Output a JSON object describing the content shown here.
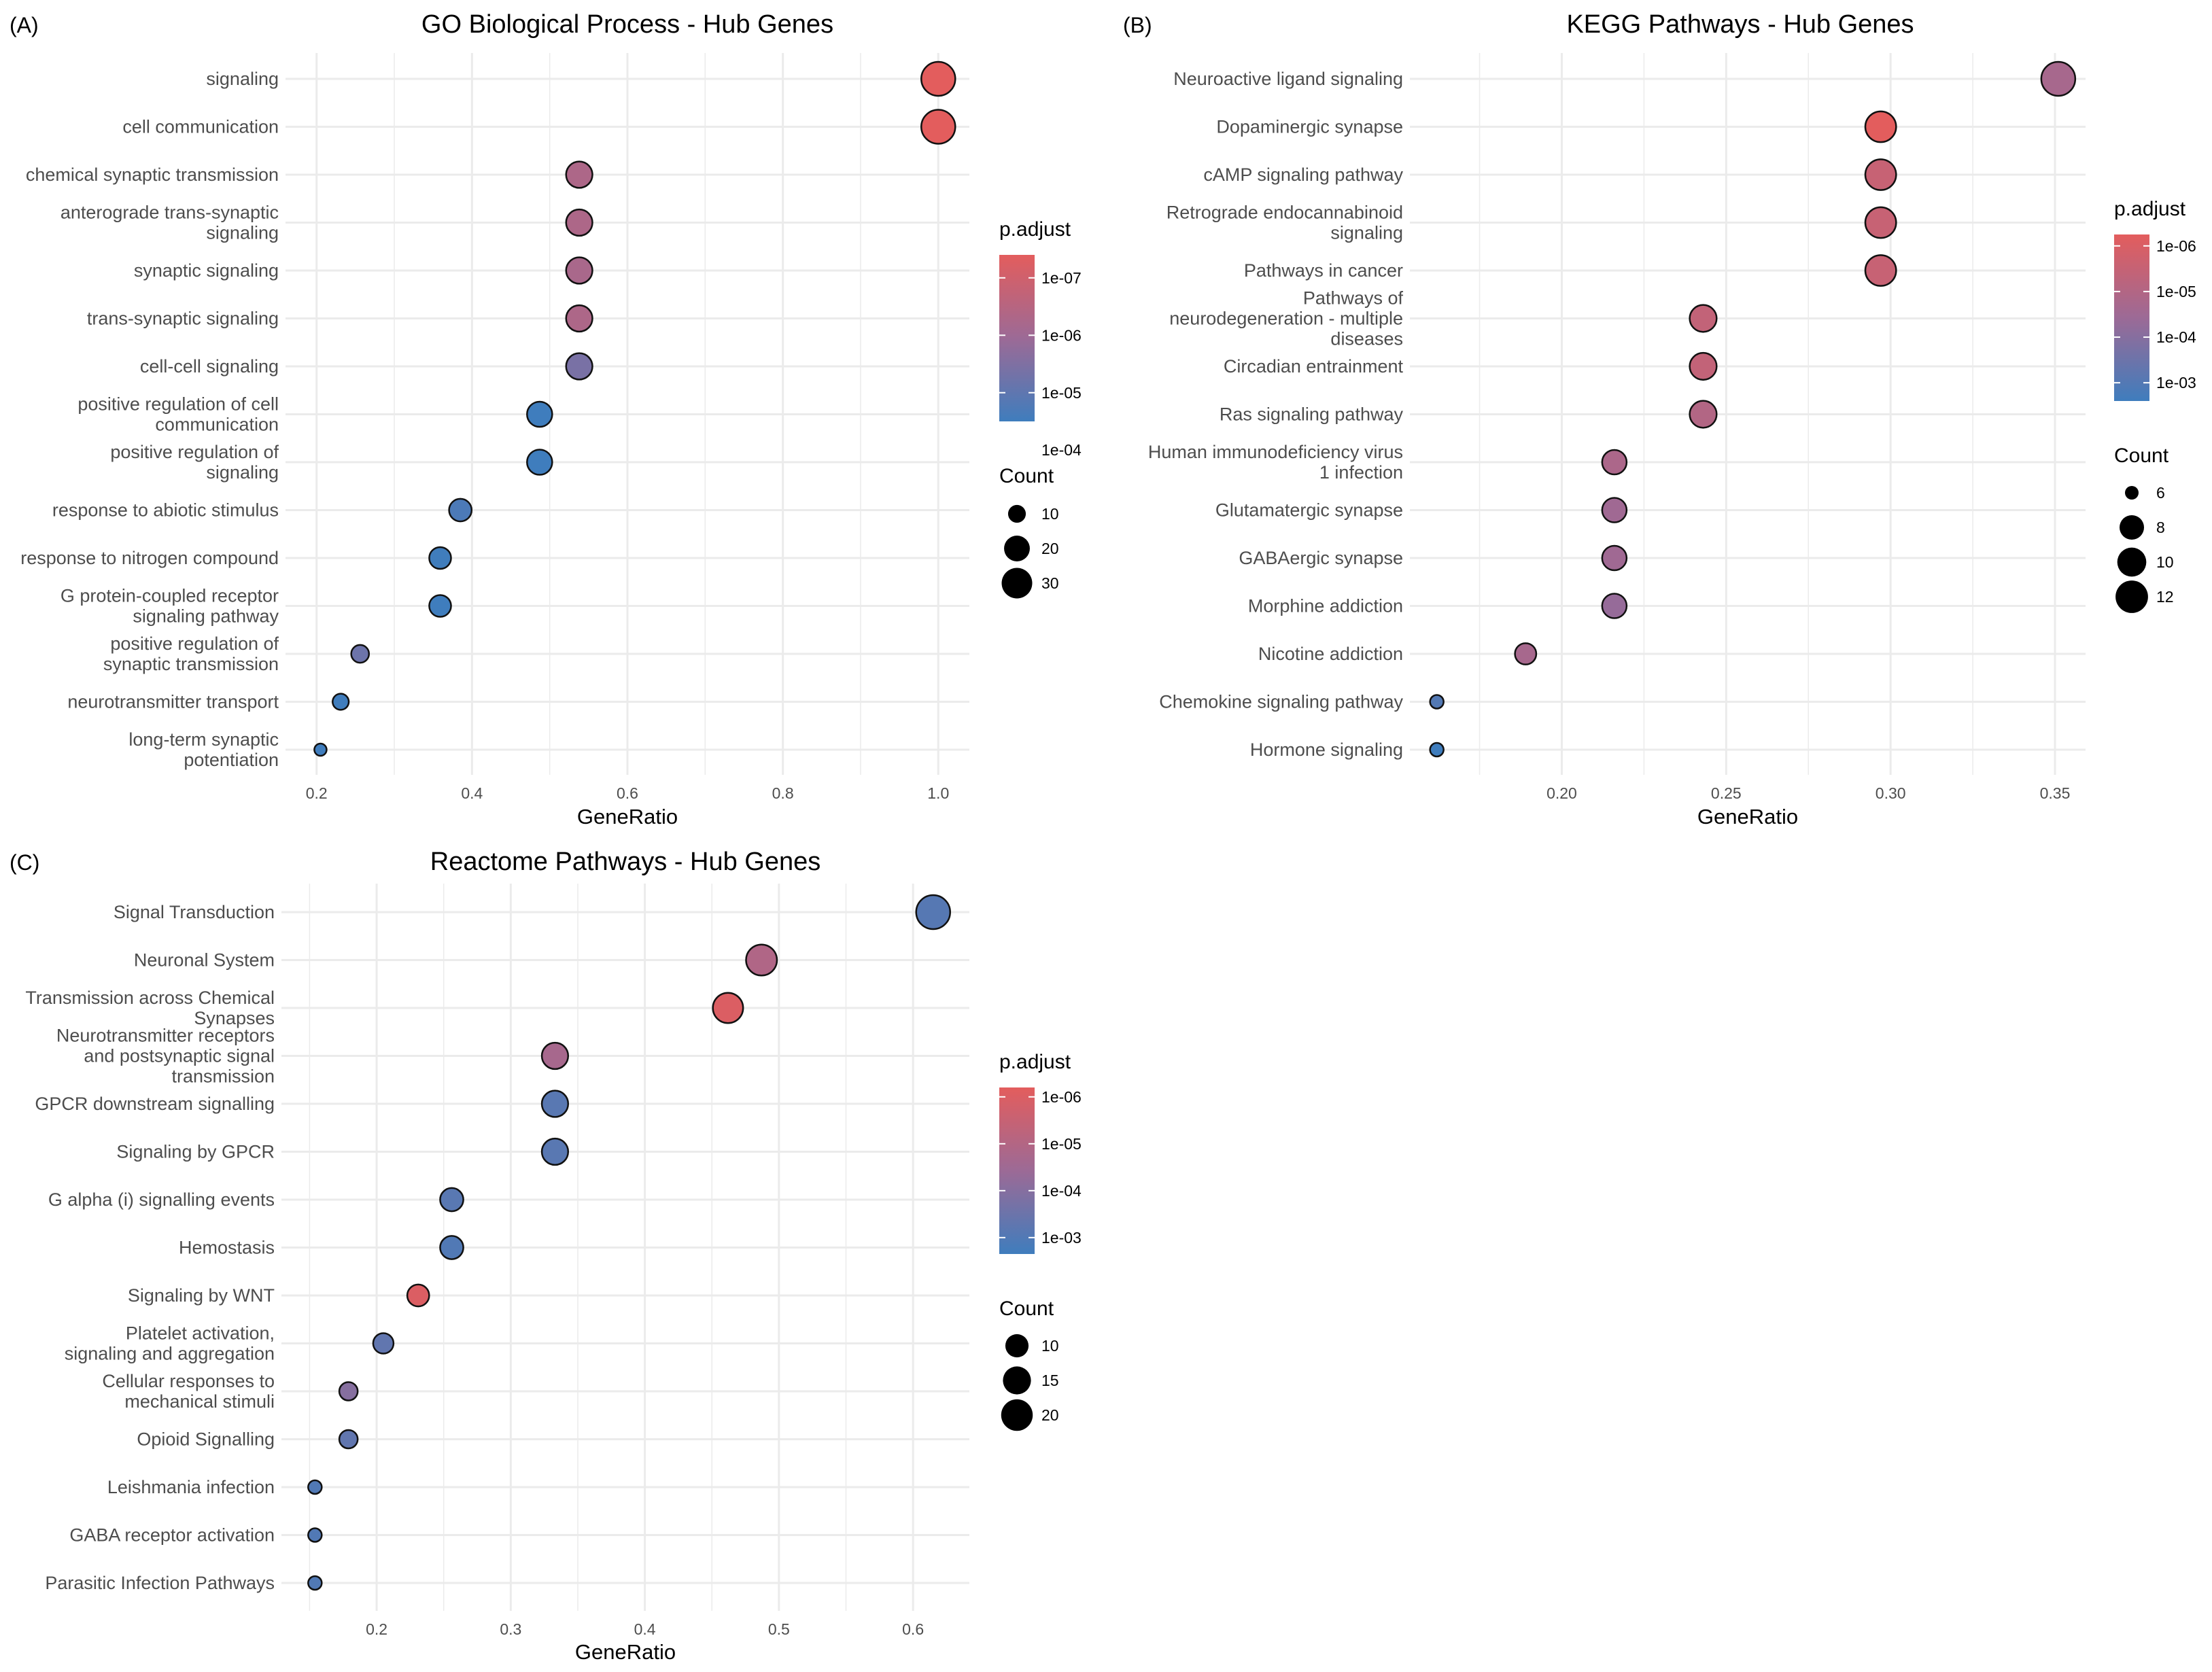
{
  "figure": {
    "background": "#ffffff",
    "grid_color": "#ebebeb",
    "low_color": "#377eb8",
    "high_color": "#e41a1c"
  },
  "chart_data": [
    {
      "tag": "(A)",
      "type": "scatter",
      "title": "GO Biological Process - Hub Genes",
      "xlabel": "GeneRatio",
      "ylabel": "",
      "xlim": [
        0.16,
        1.04
      ],
      "xticks": [
        {
          "v": 0.2,
          "label": "0.2"
        },
        {
          "v": 0.4,
          "label": "0.4"
        },
        {
          "v": 0.6,
          "label": "0.6"
        },
        {
          "v": 0.8,
          "label": "0.8"
        },
        {
          "v": 1.0,
          "label": "1.0"
        }
      ],
      "minor_xticks": [
        0.3,
        0.5,
        0.7,
        0.9
      ],
      "points": [
        {
          "term": [
            "signaling"
          ],
          "gene_ratio": 1.0,
          "count": 39,
          "p_adjust": 3e-08
        },
        {
          "term": [
            "cell communication"
          ],
          "gene_ratio": 1.0,
          "count": 39,
          "p_adjust": 3e-08
        },
        {
          "term": [
            "chemical synaptic transmission"
          ],
          "gene_ratio": 0.538,
          "count": 21,
          "p_adjust": 5e-07
        },
        {
          "term": [
            "anterograde trans-synaptic",
            "signaling"
          ],
          "gene_ratio": 0.538,
          "count": 21,
          "p_adjust": 5e-07
        },
        {
          "term": [
            "synaptic signaling"
          ],
          "gene_ratio": 0.538,
          "count": 21,
          "p_adjust": 6e-07
        },
        {
          "term": [
            "trans-synaptic signaling"
          ],
          "gene_ratio": 0.538,
          "count": 21,
          "p_adjust": 5e-07
        },
        {
          "term": [
            "cell-cell signaling"
          ],
          "gene_ratio": 0.538,
          "count": 21,
          "p_adjust": 4e-06
        },
        {
          "term": [
            "positive regulation of cell",
            "communication"
          ],
          "gene_ratio": 0.487,
          "count": 19,
          "p_adjust": 8e-05
        },
        {
          "term": [
            "positive regulation of",
            "signaling"
          ],
          "gene_ratio": 0.487,
          "count": 19,
          "p_adjust": 8e-05
        },
        {
          "term": [
            "response to abiotic stimulus"
          ],
          "gene_ratio": 0.385,
          "count": 15,
          "p_adjust": 2e-05
        },
        {
          "term": [
            "response to nitrogen compound"
          ],
          "gene_ratio": 0.359,
          "count": 14,
          "p_adjust": 3e-05
        },
        {
          "term": [
            "G protein-coupled receptor",
            "signaling pathway"
          ],
          "gene_ratio": 0.359,
          "count": 14,
          "p_adjust": 0.0001
        },
        {
          "term": [
            "positive regulation of",
            "synaptic transmission"
          ],
          "gene_ratio": 0.256,
          "count": 10,
          "p_adjust": 6e-06
        },
        {
          "term": [
            "neurotransmitter transport"
          ],
          "gene_ratio": 0.231,
          "count": 9,
          "p_adjust": 3e-05
        },
        {
          "term": [
            "long-term synaptic",
            "potentiation"
          ],
          "gene_ratio": 0.205,
          "count": 8,
          "p_adjust": 5e-05
        }
      ],
      "color_legend": {
        "title": "p.adjust",
        "log_min": -4.5,
        "log_max": -7.4,
        "ticks": [
          {
            "v": -7,
            "label": "1e-07"
          },
          {
            "v": -6,
            "label": "1e-06"
          },
          {
            "v": -5,
            "label": "1e-05"
          },
          {
            "v": -4,
            "label": "1e-04"
          }
        ]
      },
      "size_legend": {
        "title": "Count",
        "size_min": 8,
        "size_max": 39,
        "entries": [
          {
            "v": 10,
            "label": "10"
          },
          {
            "v": 20,
            "label": "20"
          },
          {
            "v": 30,
            "label": "30"
          }
        ]
      }
    },
    {
      "tag": "(B)",
      "type": "scatter",
      "title": "KEGG Pathways - Hub Genes",
      "xlabel": "GeneRatio",
      "ylabel": "",
      "xlim": [
        0.1538,
        0.3593
      ],
      "xticks": [
        {
          "v": 0.2,
          "label": "0.20"
        },
        {
          "v": 0.25,
          "label": "0.25"
        },
        {
          "v": 0.3,
          "label": "0.30"
        },
        {
          "v": 0.35,
          "label": "0.35"
        }
      ],
      "minor_xticks": [
        0.175,
        0.225,
        0.275,
        0.325
      ],
      "points": [
        {
          "term": [
            "Neuroactive ligand signaling"
          ],
          "gene_ratio": 0.351,
          "count": 13,
          "p_adjust": 2e-05
        },
        {
          "term": [
            "Dopaminergic synapse"
          ],
          "gene_ratio": 0.297,
          "count": 11,
          "p_adjust": 4e-07
        },
        {
          "term": [
            "cAMP signaling pathway"
          ],
          "gene_ratio": 0.297,
          "count": 11,
          "p_adjust": 3e-06
        },
        {
          "term": [
            "Retrograde endocannabinoid",
            "signaling"
          ],
          "gene_ratio": 0.297,
          "count": 11,
          "p_adjust": 3e-06
        },
        {
          "term": [
            "Pathways in cancer"
          ],
          "gene_ratio": 0.297,
          "count": 11,
          "p_adjust": 3e-06
        },
        {
          "term": [
            "Pathways of",
            "neurodegeneration - multiple",
            "diseases"
          ],
          "gene_ratio": 0.243,
          "count": 9,
          "p_adjust": 4e-06
        },
        {
          "term": [
            "Circadian entrainment"
          ],
          "gene_ratio": 0.243,
          "count": 9,
          "p_adjust": 4e-06
        },
        {
          "term": [
            "Ras signaling pathway"
          ],
          "gene_ratio": 0.243,
          "count": 9,
          "p_adjust": 1e-05
        },
        {
          "term": [
            "Human immunodeficiency virus",
            "1 infection"
          ],
          "gene_ratio": 0.216,
          "count": 8,
          "p_adjust": 1.5e-05
        },
        {
          "term": [
            "Glutamatergic synapse"
          ],
          "gene_ratio": 0.216,
          "count": 8,
          "p_adjust": 3e-05
        },
        {
          "term": [
            "GABAergic synapse"
          ],
          "gene_ratio": 0.216,
          "count": 8,
          "p_adjust": 3e-05
        },
        {
          "term": [
            "Morphine addiction"
          ],
          "gene_ratio": 0.216,
          "count": 8,
          "p_adjust": 5e-05
        },
        {
          "term": [
            "Nicotine addiction"
          ],
          "gene_ratio": 0.189,
          "count": 7,
          "p_adjust": 2e-05
        },
        {
          "term": [
            "Chemokine signaling pathway"
          ],
          "gene_ratio": 0.162,
          "count": 6,
          "p_adjust": 0.001
        },
        {
          "term": [
            "Hormone signaling"
          ],
          "gene_ratio": 0.162,
          "count": 6,
          "p_adjust": 0.003
        }
      ],
      "color_legend": {
        "title": "p.adjust",
        "log_min": -2.6,
        "log_max": -6.25,
        "ticks": [
          {
            "v": -6,
            "label": "1e-06"
          },
          {
            "v": -5,
            "label": "1e-05"
          },
          {
            "v": -4,
            "label": "1e-04"
          },
          {
            "v": -3,
            "label": "1e-03"
          }
        ]
      },
      "size_legend": {
        "title": "Count",
        "size_min": 6,
        "size_max": 13,
        "entries": [
          {
            "v": 6,
            "label": "6"
          },
          {
            "v": 8,
            "label": "8"
          },
          {
            "v": 10,
            "label": "10"
          },
          {
            "v": 12,
            "label": "12"
          }
        ]
      }
    },
    {
      "tag": "(C)",
      "type": "scatter",
      "title": "Reactome Pathways - Hub Genes",
      "xlabel": "GeneRatio",
      "ylabel": "",
      "xlim": [
        0.129,
        0.642
      ],
      "xticks": [
        {
          "v": 0.2,
          "label": "0.2"
        },
        {
          "v": 0.3,
          "label": "0.3"
        },
        {
          "v": 0.4,
          "label": "0.4"
        },
        {
          "v": 0.5,
          "label": "0.5"
        },
        {
          "v": 0.6,
          "label": "0.6"
        }
      ],
      "minor_xticks": [
        0.15,
        0.25,
        0.35,
        0.45,
        0.55
      ],
      "points": [
        {
          "term": [
            "Signal Transduction"
          ],
          "gene_ratio": 0.615,
          "count": 24,
          "p_adjust": 0.0008
        },
        {
          "term": [
            "Neuronal System"
          ],
          "gene_ratio": 0.487,
          "count": 19,
          "p_adjust": 1.2e-05
        },
        {
          "term": [
            "Transmission across Chemical",
            "Synapses"
          ],
          "gene_ratio": 0.462,
          "count": 18,
          "p_adjust": 1e-06
        },
        {
          "term": [
            "Neurotransmitter receptors",
            "and postsynaptic signal",
            "transmission"
          ],
          "gene_ratio": 0.333,
          "count": 13,
          "p_adjust": 2e-05
        },
        {
          "term": [
            "GPCR downstream signalling"
          ],
          "gene_ratio": 0.333,
          "count": 13,
          "p_adjust": 0.0007
        },
        {
          "term": [
            "Signaling by GPCR"
          ],
          "gene_ratio": 0.333,
          "count": 13,
          "p_adjust": 0.0007
        },
        {
          "term": [
            "G alpha (i) signalling events"
          ],
          "gene_ratio": 0.256,
          "count": 10,
          "p_adjust": 0.0007
        },
        {
          "term": [
            "Hemostasis"
          ],
          "gene_ratio": 0.256,
          "count": 10,
          "p_adjust": 0.001
        },
        {
          "term": [
            "Signaling by WNT"
          ],
          "gene_ratio": 0.231,
          "count": 9,
          "p_adjust": 1e-06
        },
        {
          "term": [
            "Platelet activation,",
            "signaling and aggregation"
          ],
          "gene_ratio": 0.205,
          "count": 8,
          "p_adjust": 0.0005
        },
        {
          "term": [
            "Cellular responses to",
            "mechanical stimuli"
          ],
          "gene_ratio": 0.179,
          "count": 7,
          "p_adjust": 0.0001
        },
        {
          "term": [
            "Opioid Signalling"
          ],
          "gene_ratio": 0.179,
          "count": 7,
          "p_adjust": 0.0005
        },
        {
          "term": [
            "Leishmania infection"
          ],
          "gene_ratio": 0.154,
          "count": 6,
          "p_adjust": 0.001
        },
        {
          "term": [
            "GABA receptor activation"
          ],
          "gene_ratio": 0.154,
          "count": 6,
          "p_adjust": 0.001
        },
        {
          "term": [
            "Parasitic Infection Pathways"
          ],
          "gene_ratio": 0.154,
          "count": 6,
          "p_adjust": 0.001
        }
      ],
      "color_legend": {
        "title": "p.adjust",
        "log_min": -2.65,
        "log_max": -6.2,
        "ticks": [
          {
            "v": -6,
            "label": "1e-06"
          },
          {
            "v": -5,
            "label": "1e-05"
          },
          {
            "v": -4,
            "label": "1e-04"
          },
          {
            "v": -3,
            "label": "1e-03"
          }
        ]
      },
      "size_legend": {
        "title": "Count",
        "size_min": 6,
        "size_max": 24,
        "entries": [
          {
            "v": 10,
            "label": "10"
          },
          {
            "v": 15,
            "label": "15"
          },
          {
            "v": 20,
            "label": "20"
          }
        ]
      }
    }
  ]
}
